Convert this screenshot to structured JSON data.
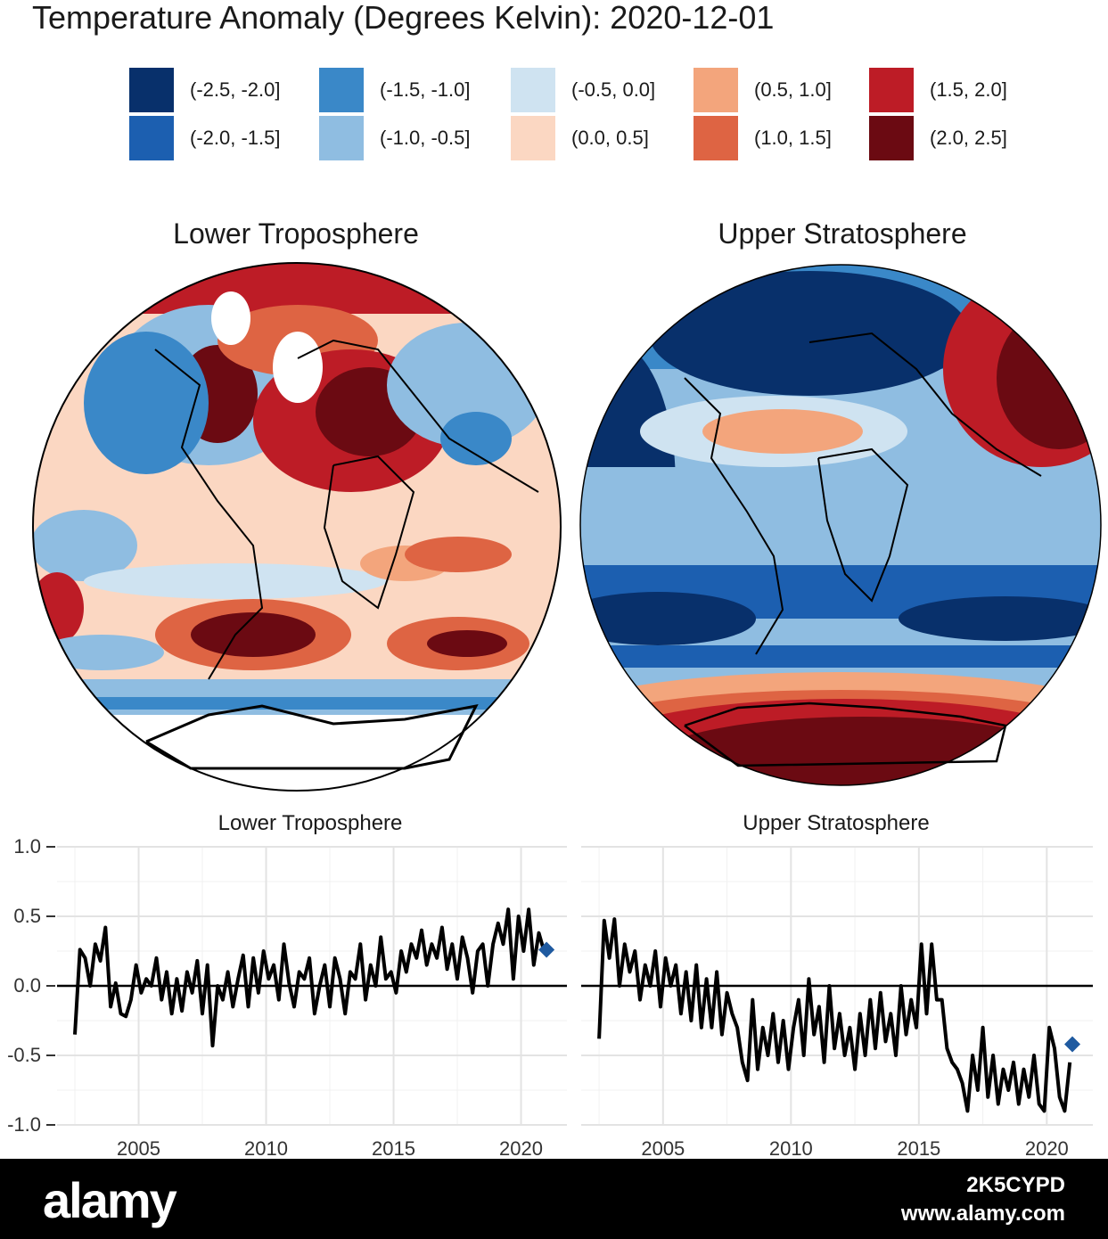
{
  "title": "Temperature Anomaly (Degrees Kelvin): 2020-12-01",
  "legend": [
    {
      "label": "(-2.5, -2.0]",
      "color": "#08306b"
    },
    {
      "label": "(-2.0, -1.5]",
      "color": "#1c5fb0"
    },
    {
      "label": "(-1.5, -1.0]",
      "color": "#3a88c8"
    },
    {
      "label": "(-1.0, -0.5]",
      "color": "#8fbde1"
    },
    {
      "label": "(-0.5, 0.0]",
      "color": "#cfe3f1"
    },
    {
      "label": "(0.0, 0.5]",
      "color": "#fbd7c2"
    },
    {
      "label": "(0.5, 1.0]",
      "color": "#f3a57c"
    },
    {
      "label": "(1.0, 1.5]",
      "color": "#de6443"
    },
    {
      "label": "(1.5, 2.0]",
      "color": "#bd1c26"
    },
    {
      "label": "(2.0, 2.5]",
      "color": "#6b0a12"
    }
  ],
  "maps": {
    "left_title": "Lower Troposphere",
    "right_title": "Upper Stratosphere"
  },
  "chart_data": [
    {
      "type": "line",
      "title": "Lower Troposphere",
      "xlabel": "",
      "ylabel": "",
      "xlim": [
        2001.8,
        2021.8
      ],
      "ylim": [
        -1.0,
        1.0
      ],
      "yticks": [
        "1.0",
        "0.5",
        "0.0",
        "-0.5",
        "-1.0"
      ],
      "xticks": [
        "2005",
        "2010",
        "2015",
        "2020"
      ],
      "grid": true,
      "zero_line": true,
      "x": [
        2002.5,
        2002.7,
        2002.9,
        2003.1,
        2003.3,
        2003.5,
        2003.7,
        2003.9,
        2004.1,
        2004.3,
        2004.5,
        2004.7,
        2004.9,
        2005.1,
        2005.3,
        2005.5,
        2005.7,
        2005.9,
        2006.1,
        2006.3,
        2006.5,
        2006.7,
        2006.9,
        2007.1,
        2007.3,
        2007.5,
        2007.7,
        2007.9,
        2008.1,
        2008.3,
        2008.5,
        2008.7,
        2008.9,
        2009.1,
        2009.3,
        2009.5,
        2009.7,
        2009.9,
        2010.1,
        2010.3,
        2010.5,
        2010.7,
        2010.9,
        2011.1,
        2011.3,
        2011.5,
        2011.7,
        2011.9,
        2012.1,
        2012.3,
        2012.5,
        2012.7,
        2012.9,
        2013.1,
        2013.3,
        2013.5,
        2013.7,
        2013.9,
        2014.1,
        2014.3,
        2014.5,
        2014.7,
        2014.9,
        2015.1,
        2015.3,
        2015.5,
        2015.7,
        2015.9,
        2016.1,
        2016.3,
        2016.5,
        2016.7,
        2016.9,
        2017.1,
        2017.3,
        2017.5,
        2017.7,
        2017.9,
        2018.1,
        2018.3,
        2018.5,
        2018.7,
        2018.9,
        2019.1,
        2019.3,
        2019.5,
        2019.7,
        2019.9,
        2020.1,
        2020.3,
        2020.5,
        2020.7,
        2020.9
      ],
      "series": [
        {
          "values": [
            -0.35,
            0.26,
            0.2,
            0.0,
            0.3,
            0.18,
            0.42,
            -0.15,
            0.02,
            -0.2,
            -0.22,
            -0.1,
            0.15,
            -0.05,
            0.05,
            0.0,
            0.2,
            -0.1,
            0.1,
            -0.2,
            0.05,
            -0.18,
            0.1,
            -0.05,
            0.18,
            -0.2,
            0.15,
            -0.43,
            0.0,
            -0.1,
            0.1,
            -0.15,
            0.05,
            0.22,
            -0.15,
            0.2,
            -0.05,
            0.25,
            0.05,
            0.15,
            -0.1,
            0.3,
            0.02,
            -0.15,
            0.1,
            0.05,
            0.2,
            -0.2,
            0.0,
            0.15,
            -0.15,
            0.2,
            0.05,
            -0.2,
            0.1,
            0.05,
            0.3,
            -0.1,
            0.15,
            0.0,
            0.35,
            0.05,
            0.1,
            -0.05,
            0.25,
            0.1,
            0.3,
            0.2,
            0.4,
            0.15,
            0.3,
            0.2,
            0.42,
            0.12,
            0.3,
            0.05,
            0.35,
            0.2,
            -0.05,
            0.25,
            0.3,
            0.0,
            0.3,
            0.45,
            0.3,
            0.55,
            0.05,
            0.5,
            0.25,
            0.55,
            0.15,
            0.38,
            0.25
          ]
        }
      ],
      "highlight": {
        "x": 2021.0,
        "y": 0.26,
        "color": "#1f5aa0"
      }
    },
    {
      "type": "line",
      "title": "Upper Stratosphere",
      "xlabel": "",
      "ylabel": "",
      "xlim": [
        2001.8,
        2021.8
      ],
      "ylim": [
        -1.0,
        1.0
      ],
      "yticks": [
        "1.0",
        "0.5",
        "0.0",
        "-0.5",
        "-1.0"
      ],
      "xticks": [
        "2005",
        "2010",
        "2015",
        "2020"
      ],
      "grid": true,
      "zero_line": true,
      "x": [
        2002.5,
        2002.7,
        2002.9,
        2003.1,
        2003.3,
        2003.5,
        2003.7,
        2003.9,
        2004.1,
        2004.3,
        2004.5,
        2004.7,
        2004.9,
        2005.1,
        2005.3,
        2005.5,
        2005.7,
        2005.9,
        2006.1,
        2006.3,
        2006.5,
        2006.7,
        2006.9,
        2007.1,
        2007.3,
        2007.5,
        2007.7,
        2007.9,
        2008.1,
        2008.3,
        2008.5,
        2008.7,
        2008.9,
        2009.1,
        2009.3,
        2009.5,
        2009.7,
        2009.9,
        2010.1,
        2010.3,
        2010.5,
        2010.7,
        2010.9,
        2011.1,
        2011.3,
        2011.5,
        2011.7,
        2011.9,
        2012.1,
        2012.3,
        2012.5,
        2012.7,
        2012.9,
        2013.1,
        2013.3,
        2013.5,
        2013.7,
        2013.9,
        2014.1,
        2014.3,
        2014.5,
        2014.7,
        2014.9,
        2015.1,
        2015.3,
        2015.5,
        2015.7,
        2015.9,
        2016.1,
        2016.3,
        2016.5,
        2016.7,
        2016.9,
        2017.1,
        2017.3,
        2017.5,
        2017.7,
        2017.9,
        2018.1,
        2018.3,
        2018.5,
        2018.7,
        2018.9,
        2019.1,
        2019.3,
        2019.5,
        2019.7,
        2019.9,
        2020.1,
        2020.3,
        2020.5,
        2020.7,
        2020.9
      ],
      "series": [
        {
          "values": [
            -0.38,
            0.47,
            0.2,
            0.48,
            0.0,
            0.3,
            0.1,
            0.25,
            -0.1,
            0.15,
            0.0,
            0.25,
            -0.15,
            0.2,
            0.0,
            0.15,
            -0.2,
            0.1,
            -0.25,
            0.15,
            -0.3,
            0.05,
            -0.3,
            0.1,
            -0.35,
            -0.05,
            -0.2,
            -0.3,
            -0.55,
            -0.68,
            -0.1,
            -0.6,
            -0.3,
            -0.5,
            -0.2,
            -0.55,
            -0.25,
            -0.6,
            -0.3,
            -0.1,
            -0.5,
            0.05,
            -0.35,
            -0.15,
            -0.55,
            0.0,
            -0.45,
            -0.2,
            -0.5,
            -0.3,
            -0.6,
            -0.2,
            -0.5,
            -0.1,
            -0.45,
            -0.05,
            -0.4,
            -0.2,
            -0.5,
            0.0,
            -0.35,
            -0.1,
            -0.3,
            0.3,
            -0.2,
            0.3,
            -0.1,
            -0.1,
            -0.45,
            -0.55,
            -0.6,
            -0.7,
            -0.9,
            -0.5,
            -0.75,
            -0.3,
            -0.8,
            -0.5,
            -0.85,
            -0.6,
            -0.75,
            -0.55,
            -0.85,
            -0.6,
            -0.8,
            -0.5,
            -0.85,
            -0.9,
            -0.3,
            -0.45,
            -0.8,
            -0.9,
            -0.55
          ]
        }
      ],
      "highlight": {
        "x": 2021.0,
        "y": -0.42,
        "color": "#1f5aa0"
      }
    }
  ],
  "footer": {
    "brand": "alamy",
    "image_id": "2K5CYPD",
    "site": "www.alamy.com"
  }
}
